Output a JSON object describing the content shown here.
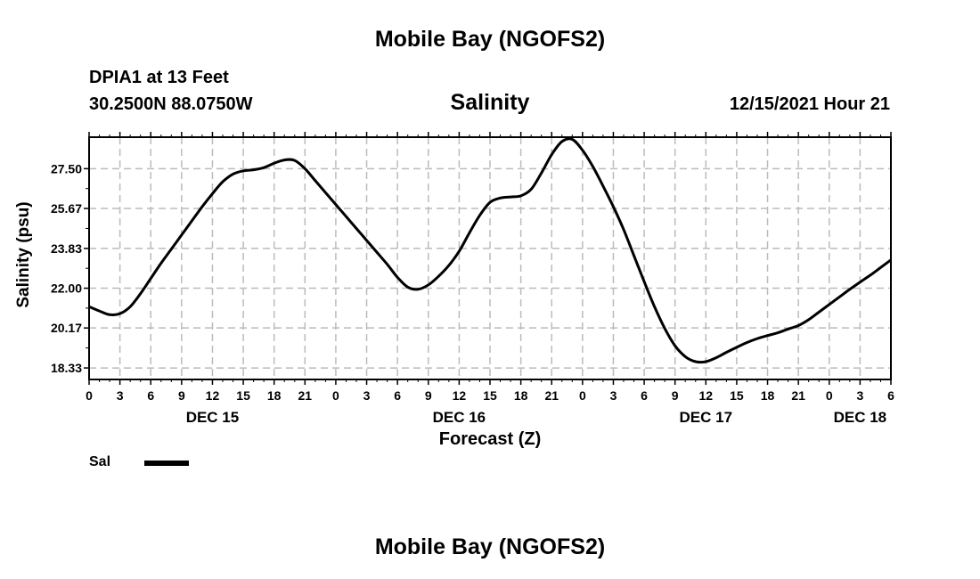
{
  "header": {
    "title": "Mobile Bay (NGOFS2)",
    "station": "DPIA1 at 13 Feet",
    "coords": "30.2500N  88.0750W",
    "timestamp": "12/15/2021 Hour 21"
  },
  "footer": {
    "title": "Mobile Bay (NGOFS2)"
  },
  "legend": {
    "label": "Sal"
  },
  "chart_data": {
    "type": "line",
    "title": "Salinity",
    "xlabel": "Forecast (Z)",
    "ylabel": "Salinity (psu)",
    "x_unit": "hours from 0Z Dec 15",
    "xlim": [
      0,
      78
    ],
    "ylim": [
      17.8,
      28.95
    ],
    "y_ticks": [
      18.33,
      20.17,
      22.0,
      23.83,
      25.67,
      27.5
    ],
    "y_tick_labels": [
      "18.33",
      "20.17",
      "22.00",
      "23.83",
      "25.67",
      "27.50"
    ],
    "x_ticks": [
      0,
      3,
      6,
      9,
      12,
      15,
      18,
      21,
      24,
      27,
      30,
      33,
      36,
      39,
      42,
      45,
      48,
      51,
      54,
      57,
      60,
      63,
      66,
      69,
      72,
      75,
      78
    ],
    "x_tick_labels": [
      "0",
      "3",
      "6",
      "9",
      "12",
      "15",
      "18",
      "21",
      "0",
      "3",
      "6",
      "9",
      "12",
      "15",
      "18",
      "21",
      "0",
      "3",
      "6",
      "9",
      "12",
      "15",
      "18",
      "21",
      "0",
      "3",
      "6"
    ],
    "day_labels": [
      {
        "x": 12,
        "label": "DEC 15"
      },
      {
        "x": 36,
        "label": "DEC 16"
      },
      {
        "x": 60,
        "label": "DEC 17"
      },
      {
        "x": 75,
        "label": "DEC 18"
      }
    ],
    "grid": true,
    "legend_position": "bottom-left",
    "colors": {
      "line": "#000000",
      "grid": "#bbbbbb"
    },
    "series": [
      {
        "name": "Sal",
        "x": [
          0,
          1,
          2,
          3,
          4,
          5,
          6,
          7,
          8,
          9,
          10,
          11,
          12,
          13,
          14,
          15,
          16,
          17,
          18,
          19,
          20,
          21,
          22,
          23,
          24,
          25,
          26,
          27,
          28,
          29,
          30,
          31,
          32,
          33,
          34,
          35,
          36,
          37,
          38,
          39,
          40,
          41,
          42,
          43,
          44,
          45,
          46,
          47,
          48,
          49,
          50,
          51,
          52,
          53,
          54,
          55,
          56,
          57,
          58,
          59,
          60,
          61,
          62,
          63,
          64,
          65,
          66,
          67,
          68,
          69,
          70,
          71,
          72,
          73,
          74,
          75,
          76,
          77,
          78
        ],
        "y": [
          21.15,
          20.95,
          20.78,
          20.83,
          21.15,
          21.75,
          22.45,
          23.15,
          23.8,
          24.45,
          25.1,
          25.75,
          26.35,
          26.9,
          27.25,
          27.4,
          27.45,
          27.55,
          27.75,
          27.9,
          27.88,
          27.5,
          26.95,
          26.4,
          25.85,
          25.3,
          24.75,
          24.2,
          23.65,
          23.1,
          22.5,
          22.05,
          21.95,
          22.15,
          22.55,
          23.05,
          23.7,
          24.55,
          25.35,
          25.95,
          26.15,
          26.2,
          26.25,
          26.55,
          27.3,
          28.15,
          28.75,
          28.85,
          28.35,
          27.6,
          26.7,
          25.75,
          24.7,
          23.5,
          22.3,
          21.15,
          20.15,
          19.35,
          18.85,
          18.62,
          18.62,
          18.8,
          19.05,
          19.28,
          19.5,
          19.68,
          19.82,
          19.95,
          20.12,
          20.28,
          20.55,
          20.9,
          21.25,
          21.6,
          21.95,
          22.28,
          22.6,
          22.95,
          23.3
        ]
      }
    ]
  }
}
